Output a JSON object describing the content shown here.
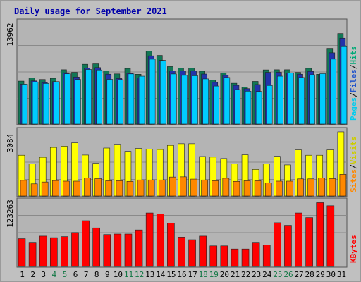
{
  "chart_data": {
    "type": "bar",
    "title": "Daily usage for September 2021",
    "categories": [
      "1",
      "2",
      "3",
      "4",
      "5",
      "6",
      "7",
      "8",
      "9",
      "10",
      "11",
      "12",
      "13",
      "14",
      "15",
      "16",
      "17",
      "18",
      "19",
      "20",
      "21",
      "22",
      "23",
      "24",
      "25",
      "26",
      "27",
      "28",
      "29",
      "30",
      "31"
    ],
    "weekend_days": [
      "4",
      "5",
      "11",
      "12",
      "18",
      "19",
      "25",
      "26"
    ],
    "day_label_colors": {
      "weekday": "#000000",
      "weekend": "#117744"
    },
    "panels": [
      {
        "name": "hits-files-pages",
        "ymax_label": "13962",
        "ymax": 13962,
        "side_label": [
          "Pages",
          "/",
          "Files",
          "/",
          "Hits"
        ],
        "side_label_colors": [
          "#00ccee",
          "#000000",
          "#2255cc",
          "#000000",
          "#00aa77"
        ],
        "series": [
          {
            "name": "Hits",
            "color": "#117755",
            "values": [
              5990,
              6460,
              6220,
              6380,
              7580,
              7220,
              8340,
              8400,
              7400,
              7000,
              7760,
              6950,
              10180,
              9580,
              8020,
              7800,
              7820,
              7380,
              6120,
              7150,
              5690,
              5150,
              5950,
              7560,
              7580,
              7580,
              7210,
              7780,
              6950,
              10560,
              12620
            ]
          },
          {
            "name": "Files",
            "color": "#2233aa",
            "values": [
              5560,
              6020,
              5780,
              5920,
              7160,
              6560,
              7800,
              7880,
              6960,
              6350,
              7100,
              6460,
              9520,
              8890,
              7410,
              7400,
              7400,
              6980,
              5820,
              6800,
              5400,
              4940,
              5510,
              7220,
              7230,
              7140,
              6960,
              7350,
              6860,
              9940,
              11970
            ]
          },
          {
            "name": "Pages",
            "color": "#00ccff",
            "values": [
              5560,
              5880,
              5660,
              5920,
              7010,
              6230,
              7620,
              7550,
              6240,
              6190,
              7000,
              6680,
              9050,
              8880,
              6990,
              6800,
              6740,
              6300,
              5300,
              6500,
              4810,
              4590,
              4550,
              5380,
              6680,
              7140,
              6500,
              6880,
              7030,
              9060,
              10890
            ]
          }
        ]
      },
      {
        "name": "visits-sites",
        "ymax_label": "3084",
        "ymax": 3084,
        "side_label": [
          "Sites",
          "/",
          "Visits"
        ],
        "side_label_colors": [
          "#ff8800",
          "#000000",
          "#cccc00"
        ],
        "series": [
          {
            "name": "Visits",
            "color": "#ffff00",
            "values": [
              1980,
              1560,
              1880,
              2360,
              2420,
              2580,
              1990,
              1590,
              2330,
              2510,
              2170,
              2310,
              2280,
              2260,
              2460,
              2540,
              2540,
              1920,
              1890,
              1820,
              1560,
              2000,
              1290,
              1560,
              1930,
              1510,
              2240,
              1980,
              1980,
              2240,
              3120
            ]
          },
          {
            "name": "Sites",
            "color": "#ff8800",
            "values": [
              760,
              590,
              680,
              750,
              720,
              720,
              880,
              840,
              740,
              740,
              710,
              780,
              780,
              780,
              920,
              930,
              820,
              780,
              740,
              860,
              710,
              740,
              740,
              630,
              720,
              720,
              830,
              830,
              880,
              840,
              1050
            ]
          }
        ]
      },
      {
        "name": "kbytes",
        "ymax_label": "123263",
        "ymax": 123263,
        "side_label": [
          "KBytes"
        ],
        "side_label_colors": [
          "#ff0000"
        ],
        "series": [
          {
            "name": "KBytes",
            "color": "#ff0000",
            "values": [
              54000,
              47000,
              59000,
              56000,
              58000,
              66000,
              89000,
              75000,
              62000,
              63000,
              63000,
              71000,
              104000,
              102000,
              84000,
              57000,
              52000,
              59000,
              40000,
              40000,
              34000,
              34000,
              47000,
              42000,
              85000,
              80000,
              104000,
              95000,
              124000,
              118000,
              0
            ]
          }
        ]
      }
    ]
  }
}
